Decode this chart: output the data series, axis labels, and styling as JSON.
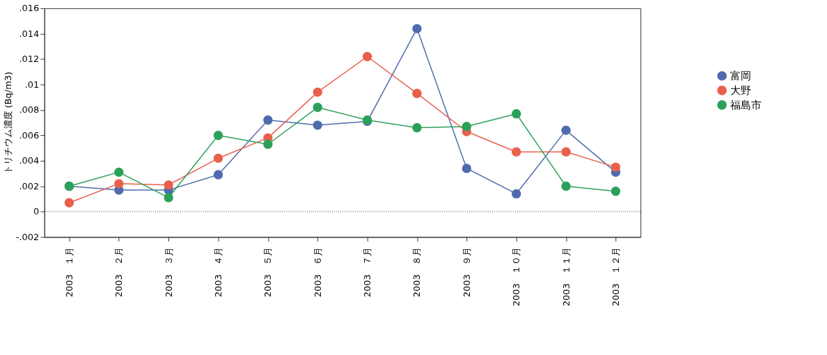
{
  "chart_data": {
    "type": "line",
    "ylabel": "トリチウム濃度 (Bq/m3)",
    "categories": [
      "2003　１月",
      "2003　２月",
      "2003　３月",
      "2003　４月",
      "2003　５月",
      "2003　６月",
      "2003　７月",
      "2003　８月",
      "2003　９月",
      "2003　１０月",
      "2003　１１月",
      "2003　１２月"
    ],
    "series": [
      {
        "name": "富岡",
        "color": "#4f6bad",
        "values": [
          0.002,
          0.0017,
          0.0017,
          0.0029,
          0.0072,
          0.0068,
          0.0071,
          0.0144,
          0.0034,
          0.0014,
          0.0064,
          0.0031
        ]
      },
      {
        "name": "大野",
        "color": "#e8604c",
        "values": [
          0.0007,
          0.0022,
          0.0021,
          0.0042,
          0.0058,
          0.0094,
          0.0122,
          0.0093,
          0.0063,
          0.0047,
          0.0047,
          0.0035
        ]
      },
      {
        "name": "福島市",
        "color": "#2ca05a",
        "values": [
          0.002,
          0.0031,
          0.0011,
          0.006,
          0.0053,
          0.0082,
          0.0072,
          0.0066,
          0.0067,
          0.0077,
          0.002,
          0.0016
        ]
      }
    ],
    "ylim": [
      -0.002,
      0.016
    ],
    "yticks": [
      {
        "value": -0.002,
        "label": "-.002"
      },
      0,
      {
        "value": 0.002,
        "label": ".002"
      },
      {
        "value": 0.004,
        "label": ".004"
      },
      {
        "value": 0.006,
        "label": ".006"
      },
      {
        "value": 0.008,
        "label": ".008"
      },
      {
        "value": 0.01,
        "label": ".01"
      },
      {
        "value": 0.012,
        "label": ".012"
      },
      {
        "value": 0.014,
        "label": ".014"
      },
      {
        "value": 0.016,
        "label": ".016"
      }
    ],
    "ref_lines": [
      {
        "axis": "y",
        "value": 0,
        "color": "#333333",
        "line_style": "dotted"
      }
    ],
    "grid": false,
    "legend": "right",
    "marker": "circle",
    "line_style": "solid"
  }
}
